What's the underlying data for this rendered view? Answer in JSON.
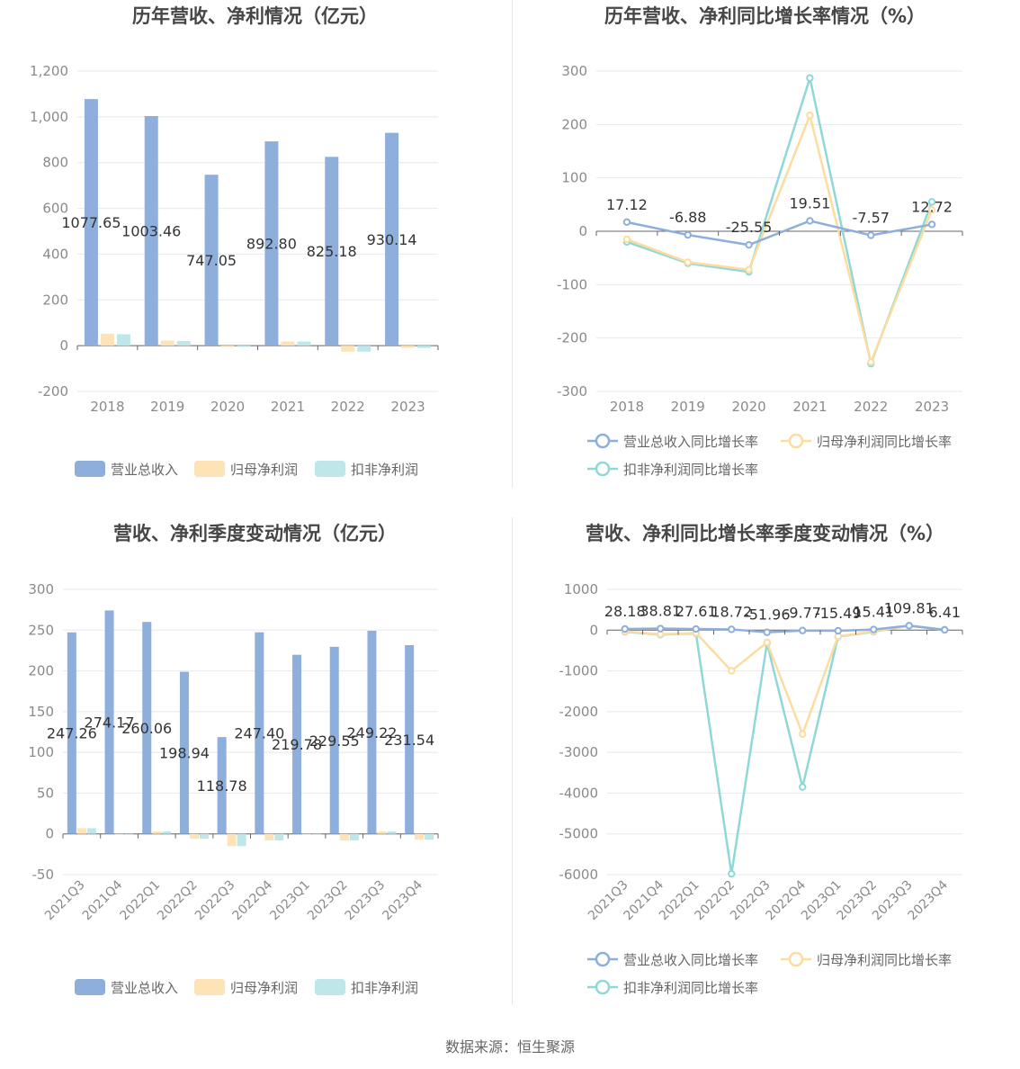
{
  "source": "数据来源：恒生聚源",
  "colors": {
    "revenue": "#8eaedc",
    "net": "#fde3b6",
    "deducted": "#bfe7ea",
    "revenue_line": "#8eaedc",
    "net_line": "#fcdc9f",
    "deducted_line": "#8fd8d8"
  },
  "chart_data": [
    {
      "type": "bar",
      "title": "历年营收、净利情况（亿元）",
      "categories": [
        "2018",
        "2019",
        "2020",
        "2021",
        "2022",
        "2023"
      ],
      "series": [
        {
          "name": "营业总收入",
          "values": [
            1077.65,
            1003.46,
            747.05,
            892.8,
            825.18,
            930.14
          ]
        },
        {
          "name": "归母净利润",
          "values": [
            52,
            22,
            -5,
            18,
            -26,
            -10
          ]
        },
        {
          "name": "扣非净利润",
          "values": [
            50,
            20,
            -5,
            18,
            -26,
            -10
          ]
        }
      ],
      "data_labels": [
        "1077.65",
        "1003.46",
        "747.05",
        "892.80",
        "825.18",
        "930.14"
      ],
      "ylim": [
        -200,
        1200
      ],
      "yticks": [
        -200,
        0,
        200,
        400,
        600,
        800,
        "1,000",
        "1,200"
      ],
      "grid": true,
      "legend": "bottom"
    },
    {
      "type": "line",
      "title": "历年营收、净利同比增长率情况（%）",
      "categories": [
        "2018",
        "2019",
        "2020",
        "2021",
        "2022",
        "2023"
      ],
      "series": [
        {
          "name": "营业总收入同比增长率",
          "values": [
            17.12,
            -6.88,
            -25.55,
            19.51,
            -7.57,
            12.72
          ]
        },
        {
          "name": "归母净利润同比增长率",
          "values": [
            -15,
            -58,
            -72,
            217,
            -245,
            40
          ]
        },
        {
          "name": "扣非净利润同比增长率",
          "values": [
            -20,
            -60,
            -76,
            287,
            -248,
            55
          ]
        }
      ],
      "data_labels": [
        "17.12",
        "-6.88",
        "-25.55",
        "19.51",
        "-7.57",
        "12.72"
      ],
      "ylim": [
        -300,
        300
      ],
      "yticks": [
        -300,
        -200,
        -100,
        0,
        100,
        200,
        300
      ],
      "grid": true,
      "legend": "bottom"
    },
    {
      "type": "bar",
      "title": "营收、净利季度变动情况（亿元）",
      "categories": [
        "2021Q3",
        "2021Q4",
        "2022Q1",
        "2022Q2",
        "2022Q3",
        "2022Q4",
        "2023Q1",
        "2023Q2",
        "2023Q3",
        "2023Q4"
      ],
      "series": [
        {
          "name": "营业总收入",
          "values": [
            247.26,
            274.17,
            260.06,
            198.94,
            118.78,
            247.4,
            219.78,
            229.55,
            249.22,
            231.54
          ]
        },
        {
          "name": "归母净利润",
          "values": [
            7,
            -1,
            3,
            -6,
            -15,
            -8,
            -1,
            -8,
            3,
            -7
          ]
        },
        {
          "name": "扣非净利润",
          "values": [
            7,
            -1,
            3,
            -6,
            -15,
            -8,
            -1,
            -8,
            3,
            -7
          ]
        }
      ],
      "data_labels": [
        "247.26",
        "274.17",
        "260.06",
        "198.94",
        "118.78",
        "247.40",
        "219.78",
        "229.55",
        "249.22",
        "231.54"
      ],
      "ylim": [
        -50,
        300
      ],
      "yticks": [
        -50,
        0,
        50,
        100,
        150,
        200,
        250,
        300
      ],
      "grid": true,
      "legend": "bottom"
    },
    {
      "type": "line",
      "title": "营收、净利同比增长率季度变动情况（%）",
      "categories": [
        "2021Q3",
        "2021Q4",
        "2022Q1",
        "2022Q2",
        "2022Q3",
        "2022Q4",
        "2023Q1",
        "2023Q2",
        "2023Q3",
        "2023Q4"
      ],
      "series": [
        {
          "name": "营业总收入同比增长率",
          "values": [
            28.18,
            38.81,
            27.61,
            18.72,
            -51.96,
            -9.77,
            -15.49,
            15.41,
            109.81,
            6.41
          ]
        },
        {
          "name": "归母净利润同比增长率",
          "values": [
            -30,
            -100,
            -70,
            -1000,
            -300,
            -2550,
            -150,
            -30,
            110,
            10
          ]
        },
        {
          "name": "扣非净利润同比增长率",
          "values": [
            -40,
            -110,
            -80,
            -5980,
            -320,
            -3850,
            -160,
            -40,
            110,
            10
          ]
        }
      ],
      "data_labels": [
        "28.18",
        "38.81",
        "27.61",
        "18.72",
        "-51.96",
        "-9.77",
        "-15.49",
        "15.41",
        "109.81",
        "6.41"
      ],
      "ylim": [
        -6000,
        1000
      ],
      "yticks": [
        -6000,
        -5000,
        -4000,
        -3000,
        -2000,
        -1000,
        0,
        1000
      ],
      "grid": true,
      "legend": "bottom"
    }
  ]
}
